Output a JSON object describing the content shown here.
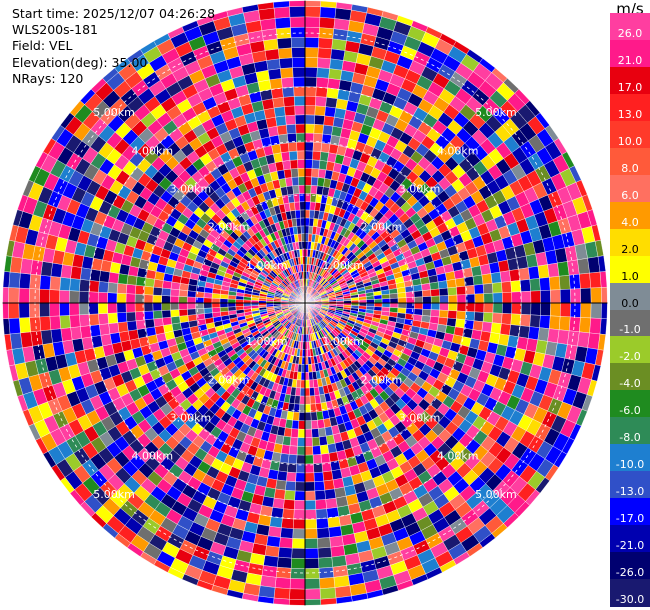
{
  "header": {
    "start_time": "Start time: 2025/12/07 04:26:28",
    "instrument": "WLS200s-181",
    "field": "Field: VEL",
    "elevation": "Elevation(deg): 35.00",
    "nrays": "NRays: 120"
  },
  "chart_data": {
    "type": "heatmap",
    "projection": "polar PPI",
    "field": "VEL",
    "units": "m/s",
    "nrays": 120,
    "range_rings_km": [
      1,
      2,
      3,
      4,
      5
    ],
    "ring_labels": [
      "1.00km",
      "2.00km",
      "3.00km",
      "4.00km",
      "5.00km"
    ],
    "max_range_km": 5.6,
    "colorbar": {
      "title": "m/s",
      "ticks": [
        "26.0",
        "21.0",
        "17.0",
        "13.0",
        "10.0",
        "8.0",
        "6.0",
        "4.0",
        "2.0",
        "1.0",
        "0.0",
        "-1.0",
        "-2.0",
        "-4.0",
        "-6.0",
        "-8.0",
        "-10.0",
        "-13.0",
        "-17.0",
        "-21.0",
        "-26.0",
        "-30.0"
      ],
      "colors": [
        "#ff3ea0",
        "#ff1a8a",
        "#e8000f",
        "#ff2020",
        "#ff3a2a",
        "#ff5a3a",
        "#ff7060",
        "#ff9a00",
        "#ffdd00",
        "#ffff00",
        "#7f8c96",
        "#6f6f6f",
        "#9bcb2a",
        "#6b8e23",
        "#1f8b1f",
        "#2e8b57",
        "#1e7fd0",
        "#3050c8",
        "#0000ff",
        "#0000b0",
        "#000070",
        "#191970"
      ]
    }
  }
}
